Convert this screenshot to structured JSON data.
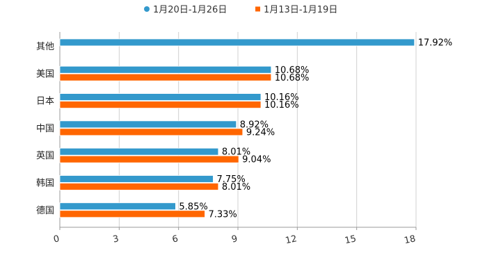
{
  "chart_data": {
    "type": "bar",
    "orientation": "horizontal",
    "title": "",
    "xlabel": "",
    "ylabel": "",
    "xlim": [
      0,
      18
    ],
    "x_ticks": [
      "0",
      "3",
      "6",
      "9",
      "12",
      "15",
      "18"
    ],
    "grid": true,
    "legend_position": "top-center",
    "categories": [
      "其他",
      "美国",
      "日本",
      "中国",
      "英国",
      "韩国",
      "德国"
    ],
    "series": [
      {
        "name": "1月20日-1月26日",
        "color": "#3399cc",
        "values": [
          17.92,
          10.68,
          10.16,
          8.92,
          8.01,
          7.75,
          5.85
        ],
        "labels": [
          "17.92%",
          "10.68%",
          "10.16%",
          "8.92%",
          "8.01%",
          "7.75%",
          "5.85%"
        ]
      },
      {
        "name": "1月13日-1月19日",
        "color": "#ff6600",
        "values": [
          null,
          10.68,
          10.16,
          9.24,
          9.04,
          8.01,
          7.33
        ],
        "labels": [
          null,
          "10.68%",
          "10.16%",
          "9.24%",
          "9.04%",
          "8.01%",
          "7.33%"
        ]
      }
    ]
  }
}
